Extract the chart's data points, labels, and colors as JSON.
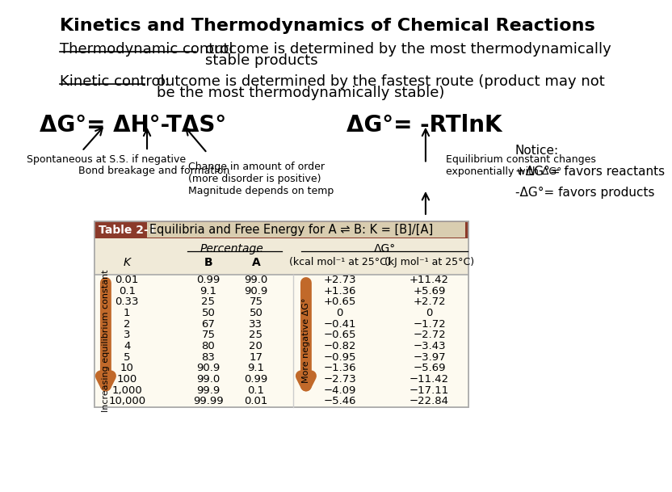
{
  "title": "Kinetics and Thermodynamics of Chemical Reactions",
  "bg_color": "#ffffff",
  "thermo_label": "Thermodynamic control",
  "kinetic_label": "Kinetic control:",
  "eq1": "ΔG°= ΔH°-TΔS°",
  "eq2": "ΔG°= -RTlnK",
  "ann1": "Spontaneous at S.S. if negative",
  "ann2": "Bond breakage and formation",
  "ann3": "Change in amount of order\n(more disorder is positive)\nMagnitude depends on temp",
  "ann4": "Equilibrium constant changes\nexponentially with ΔG°",
  "table_header_bg": "#8B3A2A",
  "table_header_text": "#ffffff",
  "table_subheader_bg": "#f0ead8",
  "table_row_bg": "#fdfaf0",
  "table_title": "Table 2-1",
  "table_caption": "Equilibria and Free Energy for A ⇌ B: K = [B]/[A]",
  "table_data": [
    [
      "0.01",
      "0.99",
      "99.0",
      "+2.73",
      "+11.42"
    ],
    [
      "0.1",
      "9.1",
      "90.9",
      "+1.36",
      "+5.69"
    ],
    [
      "0.33",
      "25",
      "75",
      "+0.65",
      "+2.72"
    ],
    [
      "1",
      "50",
      "50",
      "0",
      "0"
    ],
    [
      "2",
      "67",
      "33",
      "−0.41",
      "−1.72"
    ],
    [
      "3",
      "75",
      "25",
      "−0.65",
      "−2.72"
    ],
    [
      "4",
      "80",
      "20",
      "−0.82",
      "−3.43"
    ],
    [
      "5",
      "83",
      "17",
      "−0.95",
      "−3.97"
    ],
    [
      "10",
      "90.9",
      "9.1",
      "−1.36",
      "−5.69"
    ],
    [
      "100",
      "99.0",
      "0.99",
      "−2.73",
      "−11.42"
    ],
    [
      "1,000",
      "99.9",
      "0.1",
      "−4.09",
      "−17.11"
    ],
    [
      "10,000",
      "99.99",
      "0.01",
      "−5.46",
      "−22.84"
    ]
  ],
  "notice_text": "Notice:\n+ΔG°= favors reactants\n-ΔG°= favors products",
  "arrow_color": "#C1692A"
}
